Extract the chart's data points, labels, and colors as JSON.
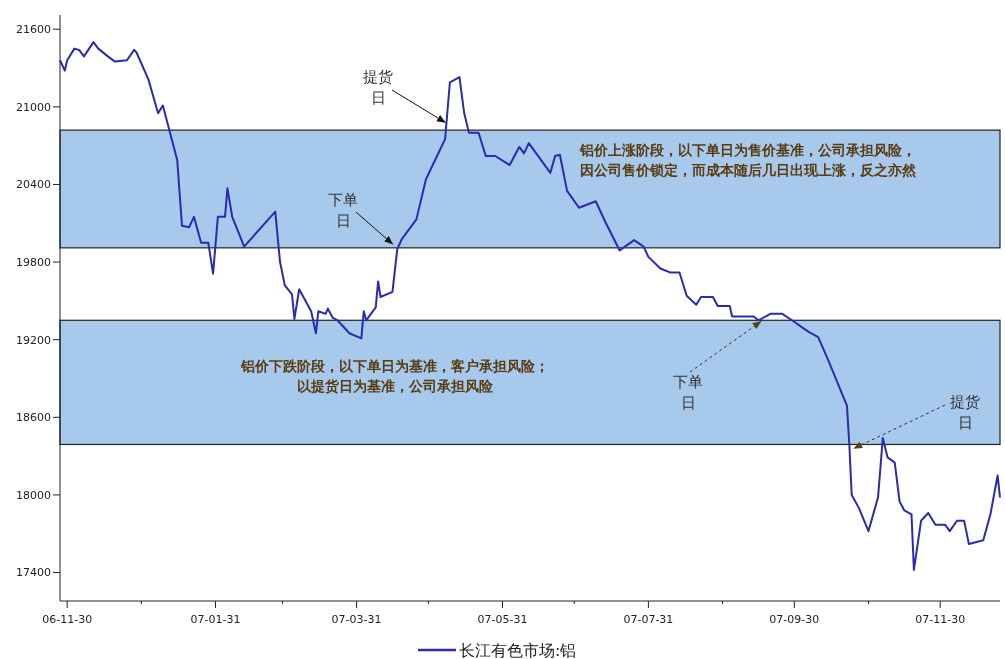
{
  "chart_data": {
    "type": "line",
    "xlim": [
      "2006-11-27",
      "2007-12-25"
    ],
    "ylim": [
      17180,
      21710
    ],
    "xticks": [
      {
        "value": "2006-11-30",
        "label": "06-11-30"
      },
      {
        "value": "2006-12-31",
        "label": null
      },
      {
        "value": "2007-01-31",
        "label": "07-01-31"
      },
      {
        "value": "2007-02-28",
        "label": null
      },
      {
        "value": "2007-03-31",
        "label": "07-03-31"
      },
      {
        "value": "2007-04-30",
        "label": null
      },
      {
        "value": "2007-05-31",
        "label": "07-05-31"
      },
      {
        "value": "2007-06-30",
        "label": null
      },
      {
        "value": "2007-07-31",
        "label": "07-07-31"
      },
      {
        "value": "2007-08-31",
        "label": null
      },
      {
        "value": "2007-09-30",
        "label": "07-09-30"
      },
      {
        "value": "2007-10-31",
        "label": null
      },
      {
        "value": "2007-11-30",
        "label": "07-11-30"
      }
    ],
    "yticks": [
      17400,
      18000,
      18600,
      19200,
      19800,
      20400,
      21000,
      21600
    ],
    "grid": false,
    "legend": "bottom",
    "marker": "none",
    "line_style": "solid",
    "bands": [
      {
        "axis": "y",
        "from": 19910,
        "to": 20820,
        "color": "#a6c9ec"
      },
      {
        "axis": "y",
        "from": 18390,
        "to": 19350,
        "color": "#a6c9ec"
      }
    ],
    "annotations": [
      {
        "text": "提货日",
        "x": "2007-05-07",
        "y": 20880
      },
      {
        "text": "下单日",
        "x": "2007-04-15",
        "y": 19940
      },
      "铝价上涨阶段，以下单日为售价基准，公司承担风险，因公司售价锁定，而成本随后几日出现上涨，反之亦然",
      "铝价下跌阶段，以下单日为基准，客户承担风险；以提货日为基准，公司承担风险",
      {
        "text": "下单日",
        "x": "2007-09-16",
        "y": 19340
      },
      {
        "text": "提货日",
        "x": "2007-10-25",
        "y": 18360
      }
    ],
    "series": [
      {
        "name": "长江有色市场:铝",
        "color": "#2b2bb0",
        "x": [
          "2006-11-27",
          "2006-11-29",
          "2006-11-30",
          "2006-12-03",
          "2006-12-05",
          "2006-12-07",
          "2006-12-11",
          "2006-12-13",
          "2006-12-17",
          "2006-12-20",
          "2006-12-25",
          "2006-12-28",
          "2006-12-29",
          "2007-01-03",
          "2007-01-07",
          "2007-01-09",
          "2007-01-12",
          "2007-01-15",
          "2007-01-17",
          "2007-01-20",
          "2007-01-22",
          "2007-01-25",
          "2007-01-28",
          "2007-01-30",
          "2007-02-01",
          "2007-02-04",
          "2007-02-05",
          "2007-02-07",
          "2007-02-12",
          "2007-02-25",
          "2007-02-27",
          "2007-03-01",
          "2007-03-04",
          "2007-03-05",
          "2007-03-07",
          "2007-03-12",
          "2007-03-14",
          "2007-03-15",
          "2007-03-18",
          "2007-03-19",
          "2007-03-21",
          "2007-03-23",
          "2007-03-28",
          "2007-04-02",
          "2007-04-03",
          "2007-04-04",
          "2007-04-08",
          "2007-04-09",
          "2007-04-10",
          "2007-04-15",
          "2007-04-17",
          "2007-04-19",
          "2007-04-25",
          "2007-04-29",
          "2007-05-07",
          "2007-05-09",
          "2007-05-13",
          "2007-05-15",
          "2007-05-17",
          "2007-05-21",
          "2007-05-24",
          "2007-05-28",
          "2007-06-03",
          "2007-06-07",
          "2007-06-09",
          "2007-06-11",
          "2007-06-20",
          "2007-06-22",
          "2007-06-24",
          "2007-06-27",
          "2007-07-02",
          "2007-07-09",
          "2007-07-13",
          "2007-07-19",
          "2007-07-25",
          "2007-07-29",
          "2007-07-31",
          "2007-08-05",
          "2007-08-09",
          "2007-08-13",
          "2007-08-16",
          "2007-08-20",
          "2007-08-22",
          "2007-08-27",
          "2007-08-29",
          "2007-09-03",
          "2007-09-04",
          "2007-09-13",
          "2007-09-15",
          "2007-09-20",
          "2007-09-25",
          "2007-09-29",
          "2007-10-06",
          "2007-10-10",
          "2007-10-14",
          "2007-10-22",
          "2007-10-23",
          "2007-10-24",
          "2007-10-27",
          "2007-10-31",
          "2007-11-04",
          "2007-11-06",
          "2007-11-08",
          "2007-11-11",
          "2007-11-13",
          "2007-11-15",
          "2007-11-18",
          "2007-11-19",
          "2007-11-22",
          "2007-11-25",
          "2007-11-28",
          "2007-12-02",
          "2007-12-04",
          "2007-12-07",
          "2007-12-10",
          "2007-12-12",
          "2007-12-18",
          "2007-12-21",
          "2007-12-24",
          "2007-12-25"
        ],
        "values": [
          21360,
          21280,
          21360,
          21450,
          21440,
          21390,
          21500,
          21450,
          21390,
          21350,
          21360,
          21440,
          21420,
          21210,
          20950,
          21010,
          20800,
          20590,
          20080,
          20070,
          20150,
          19950,
          19950,
          19710,
          20150,
          20150,
          20370,
          20150,
          19920,
          20190,
          19800,
          19620,
          19550,
          19360,
          19590,
          19420,
          19250,
          19420,
          19400,
          19440,
          19370,
          19350,
          19250,
          19210,
          19420,
          19350,
          19450,
          19650,
          19530,
          19570,
          19900,
          19980,
          20130,
          20440,
          20750,
          21190,
          21230,
          20950,
          20800,
          20800,
          20620,
          20620,
          20550,
          20690,
          20640,
          20720,
          20490,
          20620,
          20630,
          20350,
          20220,
          20270,
          20110,
          19890,
          19970,
          19920,
          19840,
          19750,
          19720,
          19720,
          19540,
          19470,
          19530,
          19530,
          19460,
          19460,
          19380,
          19380,
          19350,
          19400,
          19400,
          19350,
          19260,
          19220,
          19050,
          18690,
          18390,
          18000,
          17900,
          17720,
          17980,
          18440,
          18290,
          18250,
          17950,
          17880,
          17850,
          17420,
          17800,
          17860,
          17770,
          17770,
          17720,
          17800,
          17800,
          17620,
          17650,
          17850,
          18150,
          17980
        ]
      }
    ]
  }
}
